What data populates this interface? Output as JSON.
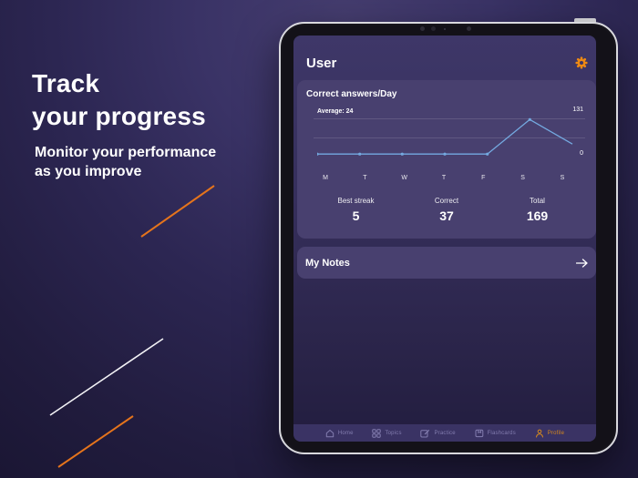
{
  "hero": {
    "title_line1": "Track",
    "title_line2": "your progress",
    "subtitle_line1": "Monitor your performance",
    "subtitle_line2": "as you improve"
  },
  "app": {
    "header": {
      "title": "User",
      "settings_icon": "gear-icon"
    },
    "chart_card": {
      "title": "Correct answers/Day",
      "average_label": "Average: 24",
      "y_max_label": "131",
      "y_min_label": "0",
      "stats": [
        {
          "label": "Best streak",
          "value": "5"
        },
        {
          "label": "Correct",
          "value": "37"
        },
        {
          "label": "Total",
          "value": "169"
        }
      ]
    },
    "notes_card": {
      "label": "My Notes",
      "arrow_icon": "right-arrow-icon"
    },
    "tab_bar": [
      {
        "label": "Home",
        "icon": "home-icon",
        "active": false
      },
      {
        "label": "Topics",
        "icon": "topics-grid-icon",
        "active": false
      },
      {
        "label": "Practice",
        "icon": "practice-icon",
        "active": false
      },
      {
        "label": "Flashcards",
        "icon": "flashcards-icon",
        "active": false
      },
      {
        "label": "Profile",
        "icon": "profile-icon",
        "active": true
      }
    ]
  },
  "chart_data": {
    "type": "line",
    "title": "Correct answers/Day",
    "categories": [
      "M",
      "T",
      "W",
      "T",
      "F",
      "S",
      "S"
    ],
    "values": [
      1,
      1,
      1,
      1,
      1,
      125,
      37
    ],
    "markers": [
      true,
      true,
      true,
      true,
      true,
      true,
      false
    ],
    "average": 24,
    "ylim": [
      0,
      131
    ],
    "right_axis_labels": [
      "131",
      "0"
    ],
    "grid": true,
    "legend": "none"
  },
  "colors": {
    "accent_orange": "#ee8a13",
    "chart_line": "#74a9e0",
    "card_background": "#48406f",
    "screen_background": "#3c3566",
    "tabbar_background": "#3a3364",
    "decor_line_orange": "#e5741c",
    "decor_line_white": "#f2f2f5"
  }
}
